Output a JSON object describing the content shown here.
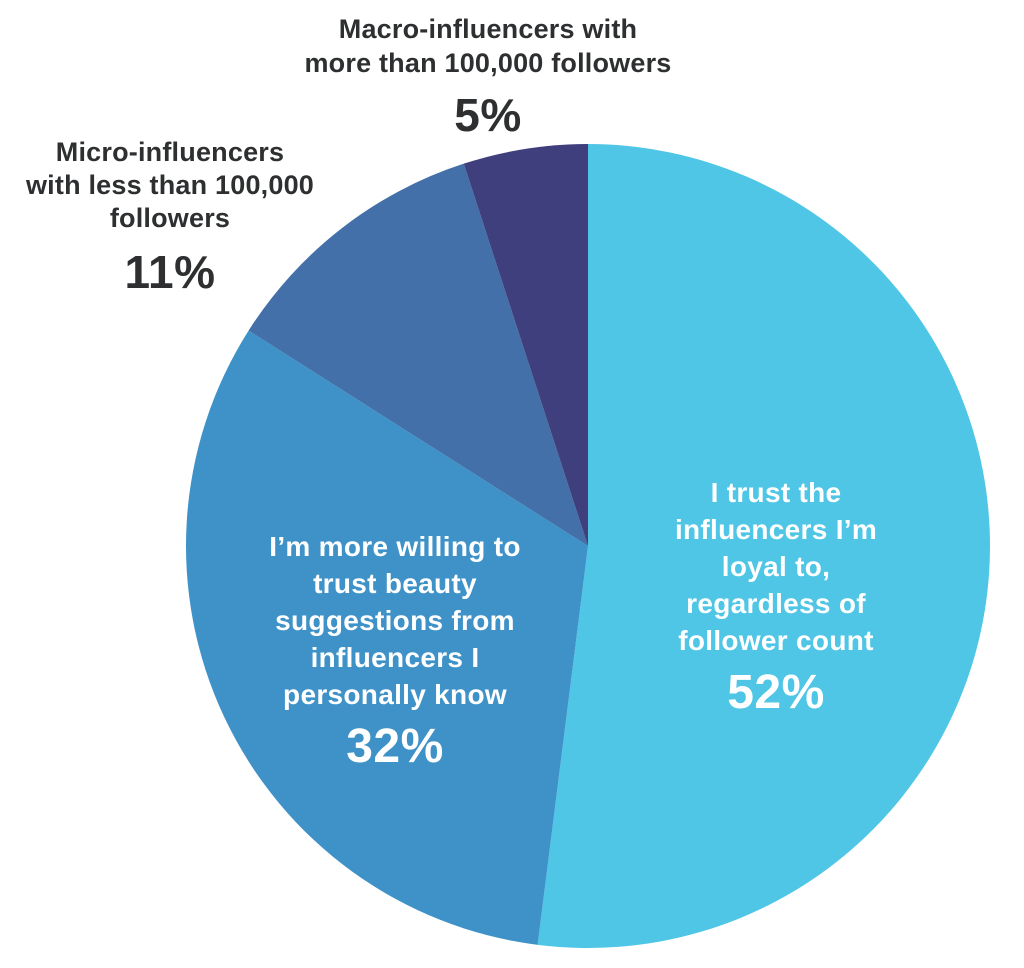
{
  "chart_data": {
    "type": "pie",
    "title": "",
    "direction": "clockwise",
    "start_angle_deg": 0,
    "center": [
      588,
      546
    ],
    "radius": 402,
    "slices": [
      {
        "id": "loyal",
        "label": "I trust the influencers I’m loyal to, regardless of follower count",
        "value": 52,
        "color": "#4fc6e5"
      },
      {
        "id": "personally-know",
        "label": "I’m more willing to trust beauty suggestions from influencers I personally know",
        "value": 32,
        "color": "#3e92c8"
      },
      {
        "id": "micro",
        "label": "Micro-influencers with less than 100,000 followers",
        "value": 11,
        "color": "#4370a8"
      },
      {
        "id": "macro",
        "label": "Macro-influencers with more than 100,000 followers",
        "value": 5,
        "color": "#403f7d"
      }
    ]
  },
  "labels": {
    "macro": {
      "rich_lines": [
        [
          {
            "t": "Macro-influencers with",
            "b": false
          }
        ],
        [
          {
            "t": "more than",
            "b": true
          },
          {
            "t": " 100,000 followers",
            "b": false
          }
        ]
      ],
      "pct": "5%"
    },
    "micro": {
      "rich_lines": [
        [
          {
            "t": "Micro-influencers",
            "b": false
          }
        ],
        [
          {
            "t": "with ",
            "b": false
          },
          {
            "t": "less than",
            "b": true
          },
          {
            "t": " 100,000",
            "b": false
          }
        ],
        [
          {
            "t": "followers",
            "b": false
          }
        ]
      ],
      "pct": "11%"
    },
    "loyal": {
      "lines": [
        "I trust the",
        "influencers I’m",
        "loyal to,",
        "regardless of",
        "follower count"
      ],
      "pct": "52%"
    },
    "personally_know": {
      "lines": [
        "I’m more willing to",
        "trust beauty",
        "suggestions from",
        "influencers I",
        "personally know"
      ],
      "pct": "32%"
    }
  }
}
